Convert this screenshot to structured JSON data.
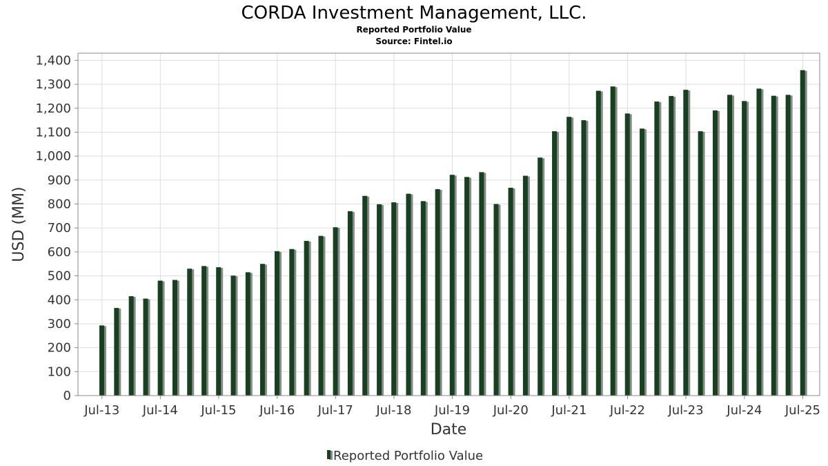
{
  "chart_data": {
    "type": "bar",
    "title": "CORDA Investment Management, LLC.",
    "subtitle": "Reported Portfolio Value",
    "source": "Source: Fintel.io",
    "xlabel": "Date",
    "ylabel": "USD (MM)",
    "ylim": [
      0,
      1430
    ],
    "yticks": [
      0,
      100,
      200,
      300,
      400,
      500,
      600,
      700,
      800,
      900,
      1000,
      1100,
      1200,
      1300,
      1400
    ],
    "ytick_labels": [
      "0",
      "100",
      "200",
      "300",
      "400",
      "500",
      "600",
      "700",
      "800",
      "900",
      "1,000",
      "1,100",
      "1,200",
      "1,300",
      "1,400"
    ],
    "xlim": [
      "2013-02-01",
      "2025-10-15"
    ],
    "xticks": [
      {
        "date": "2013-07-01",
        "label": "Jul-13"
      },
      {
        "date": "2014-07-01",
        "label": "Jul-14"
      },
      {
        "date": "2015-07-01",
        "label": "Jul-15"
      },
      {
        "date": "2016-07-01",
        "label": "Jul-16"
      },
      {
        "date": "2017-07-01",
        "label": "Jul-17"
      },
      {
        "date": "2018-07-01",
        "label": "Jul-18"
      },
      {
        "date": "2019-07-01",
        "label": "Jul-19"
      },
      {
        "date": "2020-07-01",
        "label": "Jul-20"
      },
      {
        "date": "2021-07-01",
        "label": "Jul-21"
      },
      {
        "date": "2022-07-01",
        "label": "Jul-22"
      },
      {
        "date": "2023-07-01",
        "label": "Jul-23"
      },
      {
        "date": "2024-07-01",
        "label": "Jul-24"
      },
      {
        "date": "2025-07-01",
        "label": "Jul-25"
      }
    ],
    "grid": true,
    "legend_position": "bottom",
    "colors": {
      "bar": "#16401f",
      "bar_shadow": "#8a8a8a"
    },
    "series": [
      {
        "name": "Reported Portfolio Value",
        "dates": [
          "2013-06-30",
          "2013-09-30",
          "2013-12-31",
          "2014-03-31",
          "2014-06-30",
          "2014-09-30",
          "2014-12-31",
          "2015-03-31",
          "2015-06-30",
          "2015-09-30",
          "2015-12-31",
          "2016-03-31",
          "2016-06-30",
          "2016-09-30",
          "2016-12-31",
          "2017-03-31",
          "2017-06-30",
          "2017-09-30",
          "2017-12-31",
          "2018-03-31",
          "2018-06-30",
          "2018-09-30",
          "2018-12-31",
          "2019-03-31",
          "2019-06-30",
          "2019-09-30",
          "2019-12-31",
          "2020-03-31",
          "2020-06-30",
          "2020-09-30",
          "2020-12-31",
          "2021-03-31",
          "2021-06-30",
          "2021-09-30",
          "2021-12-31",
          "2022-03-31",
          "2022-06-30",
          "2022-09-30",
          "2022-12-31",
          "2023-03-31",
          "2023-06-30",
          "2023-09-30",
          "2023-12-31",
          "2024-03-31",
          "2024-06-30",
          "2024-09-30",
          "2024-12-31",
          "2025-03-31",
          "2025-06-30"
        ],
        "values": [
          293,
          366,
          415,
          405,
          480,
          483,
          530,
          541,
          536,
          501,
          515,
          550,
          603,
          612,
          646,
          667,
          703,
          770,
          834,
          799,
          807,
          843,
          812,
          862,
          922,
          913,
          933,
          800,
          868,
          918,
          994,
          1104,
          1164,
          1150,
          1273,
          1291,
          1178,
          1115,
          1228,
          1251,
          1277,
          1104,
          1191,
          1256,
          1230,
          1282,
          1252,
          1256,
          1359
        ]
      }
    ]
  }
}
